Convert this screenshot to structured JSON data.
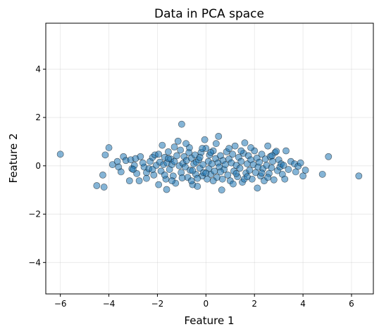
{
  "chart_data": {
    "type": "scatter",
    "title": "Data in PCA space",
    "xlabel": "Feature 1",
    "ylabel": "Feature 2",
    "xlim": [
      -6.6,
      6.9
    ],
    "ylim": [
      -5.3,
      5.9
    ],
    "xticks": [
      -6,
      -4,
      -2,
      0,
      2,
      4,
      6
    ],
    "yticks": [
      -4,
      -2,
      0,
      2,
      4
    ],
    "grid": true,
    "point_color": "#1f77b4",
    "edge_color": "#000000",
    "point_alpha": 0.55,
    "points": [
      [
        -6.0,
        0.48
      ],
      [
        -4.5,
        -0.82
      ],
      [
        -4.25,
        -0.38
      ],
      [
        -4.2,
        -0.88
      ],
      [
        -4.15,
        0.45
      ],
      [
        -4.0,
        0.75
      ],
      [
        -3.85,
        0.05
      ],
      [
        -3.65,
        0.18
      ],
      [
        -3.6,
        -0.05
      ],
      [
        -3.4,
        0.38
      ],
      [
        -3.3,
        0.22
      ],
      [
        -3.15,
        -0.62
      ],
      [
        -3.1,
        0.25
      ],
      [
        -3.05,
        -0.12
      ],
      [
        -2.95,
        0.02
      ],
      [
        -2.9,
        0.3
      ],
      [
        -2.85,
        -0.32
      ],
      [
        -2.75,
        -0.62
      ],
      [
        -2.7,
        0.38
      ],
      [
        -2.55,
        -0.05
      ],
      [
        -2.45,
        -0.28
      ],
      [
        -2.35,
        -0.12
      ],
      [
        -2.3,
        0.18
      ],
      [
        -2.2,
        0.35
      ],
      [
        -2.15,
        -0.38
      ],
      [
        -2.1,
        0.45
      ],
      [
        -2.05,
        0.02
      ],
      [
        -1.95,
        -0.78
      ],
      [
        -1.9,
        0.15
      ],
      [
        -1.85,
        -0.22
      ],
      [
        -1.8,
        0.85
      ],
      [
        -1.75,
        0.05
      ],
      [
        -1.7,
        0.35
      ],
      [
        -1.65,
        -0.55
      ],
      [
        -1.62,
        -0.98
      ],
      [
        -1.6,
        0.12
      ],
      [
        -1.55,
        0.58
      ],
      [
        -1.5,
        -0.15
      ],
      [
        -1.45,
        0.28
      ],
      [
        -1.4,
        0.05
      ],
      [
        -1.35,
        -0.42
      ],
      [
        -1.3,
        0.18
      ],
      [
        -1.25,
        -0.72
      ],
      [
        -1.2,
        0.42
      ],
      [
        -1.15,
        1.02
      ],
      [
        -1.1,
        0.0
      ],
      [
        -1.05,
        0.65
      ],
      [
        -1.02,
        -0.28
      ],
      [
        -1.0,
        1.72
      ],
      [
        -0.95,
        0.1
      ],
      [
        -0.9,
        0.38
      ],
      [
        -0.85,
        -0.05
      ],
      [
        -0.8,
        0.22
      ],
      [
        -0.75,
        -0.48
      ],
      [
        -0.7,
        0.55
      ],
      [
        -0.68,
        0.75
      ],
      [
        -0.65,
        -0.18
      ],
      [
        -0.6,
        0.32
      ],
      [
        -0.55,
        -0.78
      ],
      [
        -0.5,
        0.08
      ],
      [
        -0.45,
        0.45
      ],
      [
        -0.42,
        -0.35
      ],
      [
        -0.4,
        0.15
      ],
      [
        -0.35,
        -0.85
      ],
      [
        -0.3,
        0.25
      ],
      [
        -0.25,
        -0.1
      ],
      [
        -0.2,
        0.55
      ],
      [
        -0.15,
        -0.42
      ],
      [
        -0.12,
        0.05
      ],
      [
        -0.1,
        -0.28
      ],
      [
        -0.05,
        1.08
      ],
      [
        0.0,
        0.72
      ],
      [
        0.05,
        -0.55
      ],
      [
        0.1,
        0.18
      ],
      [
        0.12,
        -0.12
      ],
      [
        0.15,
        0.45
      ],
      [
        0.2,
        -0.35
      ],
      [
        0.25,
        0.08
      ],
      [
        0.3,
        0.62
      ],
      [
        0.35,
        -0.22
      ],
      [
        0.4,
        0.3
      ],
      [
        0.45,
        -0.48
      ],
      [
        0.5,
        0.12
      ],
      [
        0.52,
        1.22
      ],
      [
        0.55,
        -0.05
      ],
      [
        0.6,
        0.42
      ],
      [
        0.65,
        -1.0
      ],
      [
        0.7,
        0.22
      ],
      [
        0.75,
        -0.15
      ],
      [
        0.8,
        0.05
      ],
      [
        0.85,
        0.58
      ],
      [
        0.9,
        -0.38
      ],
      [
        0.95,
        0.28
      ],
      [
        1.0,
        -0.62
      ],
      [
        1.05,
        0.12
      ],
      [
        1.1,
        0.48
      ],
      [
        1.15,
        -0.22
      ],
      [
        1.2,
        0.82
      ],
      [
        1.25,
        0.02
      ],
      [
        1.3,
        -0.45
      ],
      [
        1.35,
        0.35
      ],
      [
        1.4,
        -0.1
      ],
      [
        1.45,
        0.18
      ],
      [
        1.5,
        -0.68
      ],
      [
        1.55,
        0.52
      ],
      [
        1.6,
        0.95
      ],
      [
        1.65,
        -0.3
      ],
      [
        1.7,
        0.08
      ],
      [
        1.75,
        0.42
      ],
      [
        1.8,
        -0.18
      ],
      [
        1.85,
        0.25
      ],
      [
        1.9,
        -0.55
      ],
      [
        1.95,
        0.05
      ],
      [
        2.0,
        0.62
      ],
      [
        2.05,
        -0.28
      ],
      [
        2.1,
        0.32
      ],
      [
        2.15,
        -0.05
      ],
      [
        2.2,
        0.15
      ],
      [
        2.25,
        -0.42
      ],
      [
        2.3,
        0.48
      ],
      [
        2.35,
        -0.12
      ],
      [
        2.4,
        -0.62
      ],
      [
        2.45,
        0.28
      ],
      [
        2.5,
        0.02
      ],
      [
        2.55,
        0.82
      ],
      [
        2.6,
        -0.32
      ],
      [
        2.65,
        0.38
      ],
      [
        2.7,
        -0.08
      ],
      [
        2.75,
        0.18
      ],
      [
        2.8,
        -0.58
      ],
      [
        2.85,
        0.55
      ],
      [
        2.9,
        0.6
      ],
      [
        2.95,
        -0.2
      ],
      [
        3.0,
        0.25
      ],
      [
        3.05,
        -0.05
      ],
      [
        3.1,
        0.08
      ],
      [
        3.15,
        -0.35
      ],
      [
        3.2,
        0.02
      ],
      [
        3.3,
        0.62
      ],
      [
        3.4,
        -0.15
      ],
      [
        3.5,
        0.18
      ],
      [
        3.65,
        0.08
      ],
      [
        3.8,
        -0.02
      ],
      [
        3.9,
        0.12
      ],
      [
        4.0,
        -0.42
      ],
      [
        4.1,
        -0.18
      ],
      [
        4.8,
        -0.35
      ],
      [
        5.05,
        0.38
      ],
      [
        6.3,
        -0.42
      ],
      [
        -3.5,
        -0.25
      ],
      [
        -2.6,
        0.12
      ],
      [
        -1.95,
        0.48
      ],
      [
        -1.4,
        -0.62
      ],
      [
        -0.98,
        -0.5
      ],
      [
        -0.6,
        -0.62
      ],
      [
        -0.25,
        0.35
      ],
      [
        0.2,
        0.55
      ],
      [
        0.68,
        -0.55
      ],
      [
        1.12,
        -0.75
      ],
      [
        1.58,
        -0.55
      ],
      [
        2.12,
        -0.92
      ],
      [
        2.72,
        0.42
      ],
      [
        3.25,
        -0.55
      ],
      [
        -1.3,
        0.78
      ],
      [
        -0.82,
        0.92
      ],
      [
        0.42,
        0.92
      ],
      [
        1.85,
        0.75
      ],
      [
        -2.2,
        -0.15
      ],
      [
        -1.7,
        -0.38
      ],
      [
        -0.55,
        -0.2
      ],
      [
        0.0,
        -0.3
      ],
      [
        0.6,
        -0.25
      ],
      [
        1.25,
        -0.32
      ],
      [
        1.7,
        -0.45
      ],
      [
        2.3,
        -0.3
      ],
      [
        -0.35,
        -0.52
      ],
      [
        0.3,
        -0.62
      ],
      [
        0.95,
        0.72
      ],
      [
        -1.55,
        0.3
      ],
      [
        -0.15,
        0.72
      ],
      [
        1.45,
        0.62
      ],
      [
        2.55,
        -0.48
      ],
      [
        -3.0,
        -0.15
      ],
      [
        -2.45,
        -0.52
      ],
      [
        3.7,
        -0.25
      ]
    ]
  }
}
